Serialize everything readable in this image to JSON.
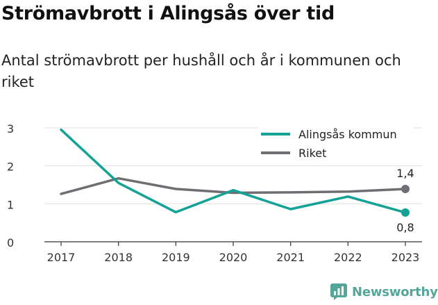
{
  "chart_data": {
    "type": "line",
    "title": "Strömavbrott i Alingsås över tid",
    "subtitle": "Antal strömavbrott per hushåll och år i kommunen och riket",
    "x": [
      "2017",
      "2018",
      "2019",
      "2020",
      "2021",
      "2022",
      "2023"
    ],
    "series": [
      {
        "name": "Alingsås kommun",
        "color": "#12a296",
        "values": [
          2.95,
          1.55,
          0.78,
          1.36,
          0.86,
          1.19,
          0.77
        ],
        "end_label": "0,8"
      },
      {
        "name": "Riket",
        "color": "#6e6e73",
        "values": [
          1.26,
          1.67,
          1.39,
          1.29,
          1.3,
          1.32,
          1.39
        ],
        "end_label": "1,4"
      }
    ],
    "yticks": [
      "0",
      "1",
      "2",
      "3"
    ],
    "ylim": [
      0,
      3
    ],
    "grid": true,
    "legend": "top-right"
  },
  "brand": {
    "name": "Newsworthy",
    "color": "#55a69a",
    "icon": "newsworthy-logo-icon"
  }
}
